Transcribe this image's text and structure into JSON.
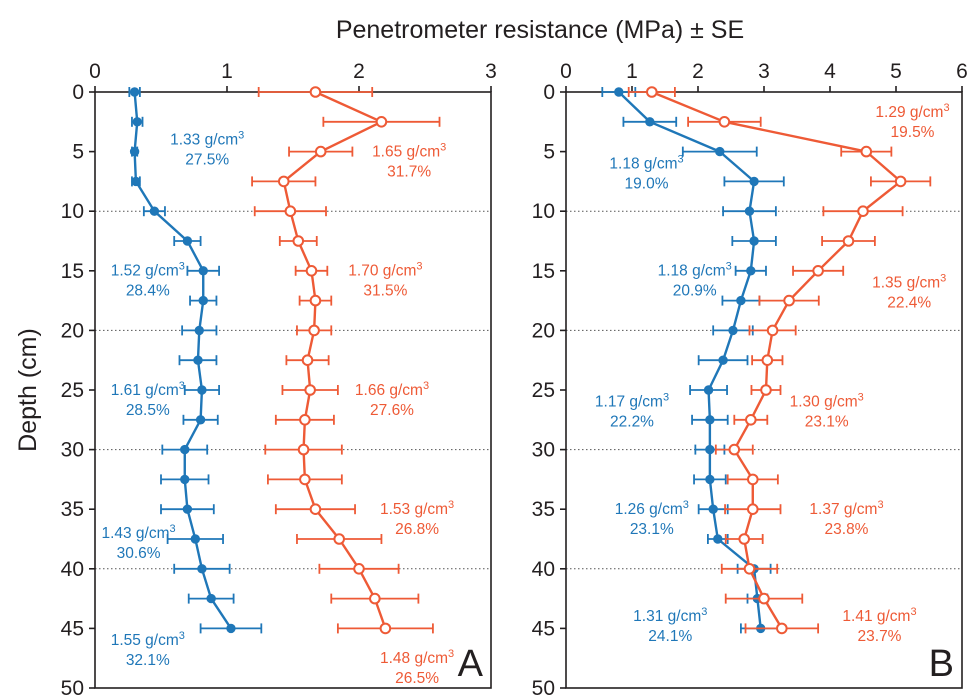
{
  "figure": {
    "top_axis_label": "Penetrometer resistance (MPa) ± SE",
    "y_axis_label": "Depth (cm)"
  },
  "chart_data": [
    {
      "type": "line",
      "panel_label": "A",
      "xlim": [
        0,
        3
      ],
      "ylim": [
        0,
        50
      ],
      "x_ticks": [
        "0",
        "1",
        "2",
        "3"
      ],
      "y_ticks": [
        "0",
        "5",
        "10",
        "15",
        "20",
        "25",
        "30",
        "35",
        "40",
        "45",
        "50"
      ],
      "x_axis_position": "top",
      "y_inverted": true,
      "dotted_gridlines_y": [
        10,
        20,
        30,
        40
      ],
      "series": [
        {
          "color": "#1f77b8",
          "marker": "filled-circle",
          "points": [
            {
              "depth": 0,
              "x": 0.3,
              "err": 0.04
            },
            {
              "depth": 2.5,
              "x": 0.32,
              "err": 0.04
            },
            {
              "depth": 5,
              "x": 0.3,
              "err": 0.02
            },
            {
              "depth": 7.5,
              "x": 0.31,
              "err": 0.03
            },
            {
              "depth": 10,
              "x": 0.45,
              "err": 0.08
            },
            {
              "depth": 12.5,
              "x": 0.7,
              "err": 0.1
            },
            {
              "depth": 15,
              "x": 0.82,
              "err": 0.12
            },
            {
              "depth": 17.5,
              "x": 0.82,
              "err": 0.1
            },
            {
              "depth": 20,
              "x": 0.79,
              "err": 0.13
            },
            {
              "depth": 22.5,
              "x": 0.78,
              "err": 0.14
            },
            {
              "depth": 25,
              "x": 0.81,
              "err": 0.13
            },
            {
              "depth": 27.5,
              "x": 0.8,
              "err": 0.13
            },
            {
              "depth": 30,
              "x": 0.68,
              "err": 0.17
            },
            {
              "depth": 32.5,
              "x": 0.68,
              "err": 0.18
            },
            {
              "depth": 35,
              "x": 0.7,
              "err": 0.2
            },
            {
              "depth": 37.5,
              "x": 0.76,
              "err": 0.21
            },
            {
              "depth": 40,
              "x": 0.81,
              "err": 0.21
            },
            {
              "depth": 42.5,
              "x": 0.88,
              "err": 0.17
            },
            {
              "depth": 45,
              "x": 1.03,
              "err": 0.23
            }
          ]
        },
        {
          "color": "#ee5a36",
          "marker": "open-circle",
          "points": [
            {
              "depth": 0,
              "x": 1.67,
              "err": 0.43
            },
            {
              "depth": 2.5,
              "x": 2.17,
              "err": 0.44
            },
            {
              "depth": 5,
              "x": 1.71,
              "err": 0.24
            },
            {
              "depth": 7.5,
              "x": 1.43,
              "err": 0.24
            },
            {
              "depth": 10,
              "x": 1.48,
              "err": 0.27
            },
            {
              "depth": 12.5,
              "x": 1.54,
              "err": 0.14
            },
            {
              "depth": 15,
              "x": 1.64,
              "err": 0.12
            },
            {
              "depth": 17.5,
              "x": 1.67,
              "err": 0.12
            },
            {
              "depth": 20,
              "x": 1.66,
              "err": 0.13
            },
            {
              "depth": 22.5,
              "x": 1.61,
              "err": 0.16
            },
            {
              "depth": 25,
              "x": 1.63,
              "err": 0.21
            },
            {
              "depth": 27.5,
              "x": 1.59,
              "err": 0.22
            },
            {
              "depth": 30,
              "x": 1.58,
              "err": 0.29
            },
            {
              "depth": 32.5,
              "x": 1.59,
              "err": 0.28
            },
            {
              "depth": 35,
              "x": 1.67,
              "err": 0.3
            },
            {
              "depth": 37.5,
              "x": 1.85,
              "err": 0.32
            },
            {
              "depth": 40,
              "x": 2.0,
              "err": 0.3
            },
            {
              "depth": 42.5,
              "x": 2.12,
              "err": 0.33
            },
            {
              "depth": 45,
              "x": 2.2,
              "err": 0.36
            }
          ]
        }
      ],
      "annotations": [
        {
          "line1": "1.33 g/cm",
          "sup": "3",
          "line2": "27.5%",
          "color": "#1f77b8",
          "x": 0.85,
          "y": 4.4
        },
        {
          "line1": "1.52 g/cm",
          "sup": "3",
          "line2": "28.4%",
          "color": "#1f77b8",
          "x": 0.4,
          "y": 15.4
        },
        {
          "line1": "1.61 g/cm",
          "sup": "3",
          "line2": "28.5%",
          "color": "#1f77b8",
          "x": 0.4,
          "y": 25.4
        },
        {
          "line1": "1.43 g/cm",
          "sup": "3",
          "line2": "30.6%",
          "color": "#1f77b8",
          "x": 0.33,
          "y": 37.4
        },
        {
          "line1": "1.55 g/cm",
          "sup": "3",
          "line2": "32.1%",
          "color": "#1f77b8",
          "x": 0.4,
          "y": 46.4
        },
        {
          "line1": "1.65 g/cm",
          "sup": "3",
          "line2": "31.7%",
          "color": "#ee5a36",
          "x": 2.38,
          "y": 5.4
        },
        {
          "line1": "1.70 g/cm",
          "sup": "3",
          "line2": "31.5%",
          "color": "#ee5a36",
          "x": 2.2,
          "y": 15.4
        },
        {
          "line1": "1.66  g/cm",
          "sup": "3",
          "line2": "27.6%",
          "color": "#ee5a36",
          "x": 2.25,
          "y": 25.4
        },
        {
          "line1": "1.53 g/cm",
          "sup": "3",
          "line2": "26.8%",
          "color": "#ee5a36",
          "x": 2.44,
          "y": 35.4
        },
        {
          "line1": "1.48 g/cm",
          "sup": "3",
          "line2": "26.5%",
          "color": "#ee5a36",
          "x": 2.44,
          "y": 47.9
        }
      ]
    },
    {
      "type": "line",
      "panel_label": "B",
      "xlim": [
        0,
        6
      ],
      "ylim": [
        0,
        50
      ],
      "x_ticks": [
        "0",
        "1",
        "2",
        "3",
        "4",
        "5",
        "6"
      ],
      "y_ticks": [
        "0",
        "5",
        "10",
        "15",
        "20",
        "25",
        "30",
        "35",
        "40",
        "45",
        "50"
      ],
      "x_axis_position": "top",
      "y_inverted": true,
      "dotted_gridlines_y": [
        10,
        20,
        30,
        40
      ],
      "series": [
        {
          "color": "#1f77b8",
          "marker": "filled-circle",
          "points": [
            {
              "depth": 0,
              "x": 0.8,
              "err": 0.25
            },
            {
              "depth": 2.5,
              "x": 1.27,
              "err": 0.4
            },
            {
              "depth": 5,
              "x": 2.33,
              "err": 0.56
            },
            {
              "depth": 7.5,
              "x": 2.85,
              "err": 0.45
            },
            {
              "depth": 10,
              "x": 2.78,
              "err": 0.4
            },
            {
              "depth": 12.5,
              "x": 2.85,
              "err": 0.33
            },
            {
              "depth": 15,
              "x": 2.8,
              "err": 0.23
            },
            {
              "depth": 17.5,
              "x": 2.65,
              "err": 0.28
            },
            {
              "depth": 20,
              "x": 2.53,
              "err": 0.3
            },
            {
              "depth": 22.5,
              "x": 2.38,
              "err": 0.37
            },
            {
              "depth": 25,
              "x": 2.16,
              "err": 0.28
            },
            {
              "depth": 27.5,
              "x": 2.18,
              "err": 0.27
            },
            {
              "depth": 30,
              "x": 2.18,
              "err": 0.22
            },
            {
              "depth": 32.5,
              "x": 2.18,
              "err": 0.24
            },
            {
              "depth": 35,
              "x": 2.23,
              "err": 0.22
            },
            {
              "depth": 37.5,
              "x": 2.3,
              "err": 0.15
            },
            {
              "depth": 40,
              "x": 2.85,
              "err": 0.25
            },
            {
              "depth": 42.5,
              "x": 2.9,
              "err": 0.15
            },
            {
              "depth": 45,
              "x": 2.95,
              "err": 0.3
            }
          ]
        },
        {
          "color": "#ee5a36",
          "marker": "open-circle",
          "points": [
            {
              "depth": 0,
              "x": 1.3,
              "err": 0.35
            },
            {
              "depth": 2.5,
              "x": 2.4,
              "err": 0.55
            },
            {
              "depth": 5,
              "x": 4.55,
              "err": 0.38
            },
            {
              "depth": 7.5,
              "x": 5.07,
              "err": 0.45
            },
            {
              "depth": 10,
              "x": 4.5,
              "err": 0.6
            },
            {
              "depth": 12.5,
              "x": 4.28,
              "err": 0.4
            },
            {
              "depth": 15,
              "x": 3.82,
              "err": 0.38
            },
            {
              "depth": 17.5,
              "x": 3.38,
              "err": 0.45
            },
            {
              "depth": 20,
              "x": 3.13,
              "err": 0.35
            },
            {
              "depth": 22.5,
              "x": 3.05,
              "err": 0.23
            },
            {
              "depth": 25,
              "x": 3.03,
              "err": 0.22
            },
            {
              "depth": 27.5,
              "x": 2.8,
              "err": 0.25
            },
            {
              "depth": 30,
              "x": 2.55,
              "err": 0.28
            },
            {
              "depth": 32.5,
              "x": 2.83,
              "err": 0.38
            },
            {
              "depth": 35,
              "x": 2.83,
              "err": 0.42
            },
            {
              "depth": 37.5,
              "x": 2.7,
              "err": 0.28
            },
            {
              "depth": 40,
              "x": 2.78,
              "err": 0.42
            },
            {
              "depth": 42.5,
              "x": 3.0,
              "err": 0.58
            },
            {
              "depth": 45,
              "x": 3.27,
              "err": 0.55
            }
          ]
        }
      ],
      "annotations": [
        {
          "line1": "1.29 g/cm",
          "sup": "3",
          "line2": "19.5%",
          "color": "#ee5a36",
          "x": 5.25,
          "y": 2.1
        },
        {
          "line1": "1.18 g/cm",
          "sup": "3",
          "line2": "19.0%",
          "color": "#1f77b8",
          "x": 1.22,
          "y": 6.4
        },
        {
          "line1": "1.18 g/cm",
          "sup": "3",
          "line2": "20.9%",
          "color": "#1f77b8",
          "x": 1.95,
          "y": 15.4
        },
        {
          "line1": "1.35 g/cm",
          "sup": "3",
          "line2": "22.4%",
          "color": "#ee5a36",
          "x": 5.2,
          "y": 16.4
        },
        {
          "line1": "1.17 g/cm",
          "sup": "3",
          "line2": "22.2%",
          "color": "#1f77b8",
          "x": 1.0,
          "y": 26.4
        },
        {
          "line1": "1.30 g/cm",
          "sup": "3",
          "line2": "23.1%",
          "color": "#ee5a36",
          "x": 3.95,
          "y": 26.4
        },
        {
          "line1": "1.26 g/cm",
          "sup": "3",
          "line2": "23.1%",
          "color": "#1f77b8",
          "x": 1.3,
          "y": 35.4
        },
        {
          "line1": "1.37 g/cm",
          "sup": "3",
          "line2": "23.8%",
          "color": "#ee5a36",
          "x": 4.25,
          "y": 35.4
        },
        {
          "line1": "1.31 g/cm",
          "sup": "3",
          "line2": "24.1%",
          "color": "#1f77b8",
          "x": 1.58,
          "y": 44.4
        },
        {
          "line1": "1.41 g/cm",
          "sup": "3",
          "line2": "23.7%",
          "color": "#ee5a36",
          "x": 4.75,
          "y": 44.4
        }
      ]
    }
  ]
}
